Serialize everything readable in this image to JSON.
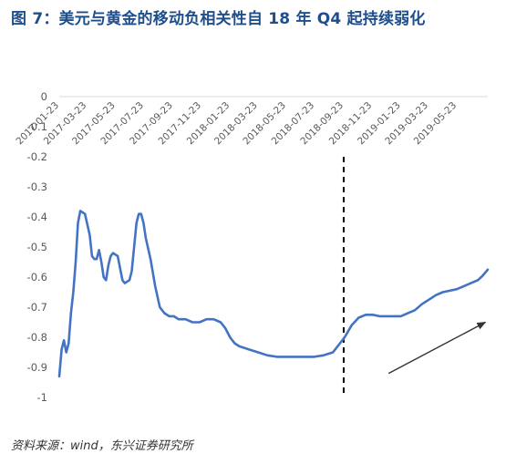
{
  "title": "图 7：美元与黄金的移动负相关性自 18 年 Q4 起持续弱化",
  "source": "资料来源：wind，东兴证券研究所",
  "colors": {
    "title": "#1f4e8c",
    "line": "#4472c4",
    "axis_text": "#595959",
    "marker": "#000000",
    "arrow": "#333333"
  },
  "chart_data": {
    "type": "line",
    "title": "",
    "xlabel": "",
    "ylabel": "",
    "ylim": [
      -1,
      0
    ],
    "yticks": [
      0,
      -0.1,
      -0.2,
      -0.3,
      -0.4,
      -0.5,
      -0.6,
      -0.7,
      -0.8,
      -0.9,
      -1
    ],
    "ytick_labels": [
      "0",
      "-0.1",
      "-0.2",
      "-0.3",
      "-0.4",
      "-0.5",
      "-0.6",
      "-0.7",
      "-0.8",
      "-0.9",
      "-1"
    ],
    "xlim": [
      "2017-01-23",
      "2019-07-28"
    ],
    "x_tick_labels": [
      "2017-01-23",
      "2017-03-23",
      "2017-05-23",
      "2017-07-23",
      "2017-09-23",
      "2017-11-23",
      "2018-01-23",
      "2018-03-23",
      "2018-05-23",
      "2018-07-23",
      "2018-09-23",
      "2018-11-23",
      "2019-01-23",
      "2019-03-23",
      "2019-05-23"
    ],
    "vertical_marker": {
      "x": "2018-09-23",
      "style": "dashed"
    },
    "trend_arrow": {
      "from": [
        "2018-12-28",
        -0.92
      ],
      "to": [
        "2019-07-23",
        -0.75
      ]
    },
    "grid": false,
    "legend": "none",
    "series": [
      {
        "x": [
          "2017-01-23",
          "2017-01-28",
          "2017-02-02",
          "2017-02-07",
          "2017-02-12",
          "2017-02-17",
          "2017-02-22",
          "2017-02-27",
          "2017-03-04",
          "2017-03-09",
          "2017-03-19",
          "2017-03-29",
          "2017-04-03",
          "2017-04-08",
          "2017-04-13",
          "2017-04-18",
          "2017-04-23",
          "2017-04-28",
          "2017-05-03",
          "2017-05-08",
          "2017-05-13",
          "2017-05-18",
          "2017-05-28",
          "2017-06-02",
          "2017-06-07",
          "2017-06-12",
          "2017-06-22",
          "2017-06-27",
          "2017-07-02",
          "2017-07-07",
          "2017-07-12",
          "2017-07-17",
          "2017-07-22",
          "2017-07-27",
          "2017-08-06",
          "2017-08-16",
          "2017-08-26",
          "2017-09-05",
          "2017-09-15",
          "2017-09-25",
          "2017-10-05",
          "2017-10-20",
          "2017-11-04",
          "2017-11-19",
          "2017-12-04",
          "2017-12-19",
          "2018-01-03",
          "2018-01-13",
          "2018-01-23",
          "2018-02-02",
          "2018-02-12",
          "2018-03-04",
          "2018-03-24",
          "2018-04-13",
          "2018-05-03",
          "2018-05-23",
          "2018-06-12",
          "2018-07-02",
          "2018-07-22",
          "2018-08-11",
          "2018-08-31",
          "2018-09-10",
          "2018-09-25",
          "2018-10-10",
          "2018-10-25",
          "2018-11-09",
          "2018-11-24",
          "2018-12-09",
          "2018-12-24",
          "2019-01-08",
          "2019-01-23",
          "2019-02-07",
          "2019-02-22",
          "2019-03-09",
          "2019-03-24",
          "2019-04-08",
          "2019-04-23",
          "2019-05-08",
          "2019-05-23",
          "2019-06-07",
          "2019-06-22",
          "2019-07-07",
          "2019-07-17",
          "2019-07-28"
        ],
        "values": [
          -0.93,
          -0.84,
          -0.81,
          -0.85,
          -0.82,
          -0.72,
          -0.65,
          -0.55,
          -0.42,
          -0.38,
          -0.39,
          -0.46,
          -0.53,
          -0.54,
          -0.54,
          -0.51,
          -0.55,
          -0.6,
          -0.61,
          -0.56,
          -0.53,
          -0.52,
          -0.53,
          -0.57,
          -0.61,
          -0.62,
          -0.61,
          -0.58,
          -0.5,
          -0.42,
          -0.39,
          -0.39,
          -0.42,
          -0.47,
          -0.54,
          -0.63,
          -0.7,
          -0.72,
          -0.73,
          -0.73,
          -0.74,
          -0.74,
          -0.75,
          -0.75,
          -0.74,
          -0.74,
          -0.75,
          -0.77,
          -0.8,
          -0.82,
          -0.83,
          -0.84,
          -0.85,
          -0.86,
          -0.865,
          -0.865,
          -0.865,
          -0.865,
          -0.865,
          -0.86,
          -0.85,
          -0.83,
          -0.8,
          -0.76,
          -0.735,
          -0.725,
          -0.725,
          -0.73,
          -0.73,
          -0.73,
          -0.73,
          -0.72,
          -0.71,
          -0.69,
          -0.675,
          -0.66,
          -0.65,
          -0.645,
          -0.64,
          -0.63,
          -0.62,
          -0.61,
          -0.595,
          -0.575
        ]
      }
    ]
  }
}
